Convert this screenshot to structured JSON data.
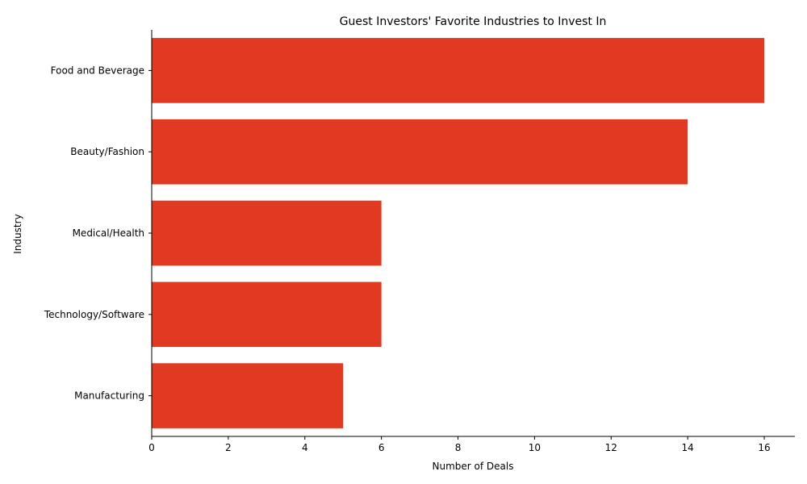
{
  "chart_data": {
    "type": "bar",
    "orientation": "horizontal",
    "title": "Guest Investors' Favorite Industries to Invest In",
    "xlabel": "Number of Deals",
    "ylabel": "Industry",
    "categories": [
      "Food and Beverage",
      "Beauty/Fashion",
      "Medical/Health",
      "Technology/Software",
      "Manufacturing"
    ],
    "values": [
      16,
      14,
      6,
      6,
      5
    ],
    "xlim": [
      0,
      16.8
    ],
    "xticks": [
      0,
      2,
      4,
      6,
      8,
      10,
      12,
      14,
      16
    ],
    "bar_color": "#e03b22",
    "grid": false,
    "legend": "none"
  }
}
